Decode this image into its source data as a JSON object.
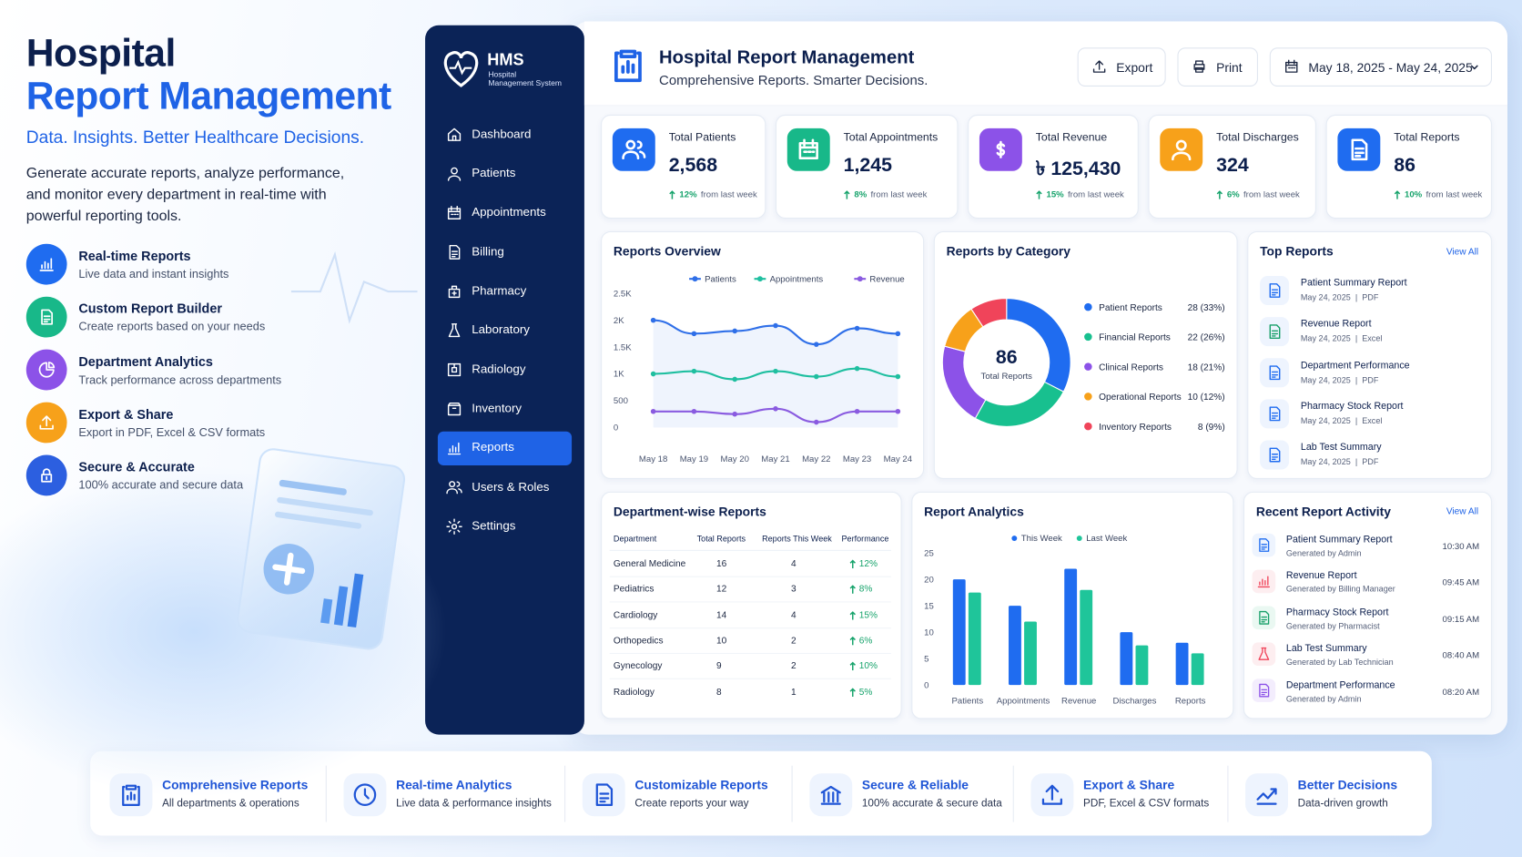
{
  "hero": {
    "title_line1": "Hospital",
    "title_line2": "Report Management",
    "tagline": "Data. Insights. Better Healthcare Decisions.",
    "description": "Generate accurate reports, analyze performance, and monitor every department in real-time with powerful reporting tools.",
    "features": [
      {
        "title": "Real-time Reports",
        "desc": "Live data and instant insights"
      },
      {
        "title": "Custom Report Builder",
        "desc": "Create reports based on your needs"
      },
      {
        "title": "Department Analytics",
        "desc": "Track performance across departments"
      },
      {
        "title": "Export & Share",
        "desc": "Export in PDF, Excel & CSV formats"
      },
      {
        "title": "Secure & Accurate",
        "desc": "100% accurate and secure data"
      }
    ]
  },
  "sidebar": {
    "brand": "HMS",
    "brand_sub": [
      "Hospital",
      "Management System"
    ],
    "nav": [
      {
        "label": "Dashboard"
      },
      {
        "label": "Patients"
      },
      {
        "label": "Appointments"
      },
      {
        "label": "Billing"
      },
      {
        "label": "Pharmacy"
      },
      {
        "label": "Laboratory"
      },
      {
        "label": "Radiology"
      },
      {
        "label": "Inventory"
      },
      {
        "label": "Reports",
        "active": true
      },
      {
        "label": "Users & Roles"
      },
      {
        "label": "Settings"
      }
    ]
  },
  "header": {
    "title": "Hospital Report Management",
    "subtitle": "Comprehensive Reports. Smarter Decisions.",
    "export": "Export",
    "print": "Print",
    "date_range": "May 18, 2025 - May 24, 2025"
  },
  "kpis": [
    {
      "label": "Total Patients",
      "value": "2,568",
      "change": "12%",
      "note": "from last week"
    },
    {
      "label": "Total Appointments",
      "value": "1,245",
      "change": "8%",
      "note": "from last week"
    },
    {
      "label": "Total Revenue",
      "value": "৳ 125,430",
      "change": "15%",
      "note": "from last week"
    },
    {
      "label": "Total Discharges",
      "value": "324",
      "change": "6%",
      "note": "from last week"
    },
    {
      "label": "Total Reports",
      "value": "86",
      "change": "10%",
      "note": "from last week"
    }
  ],
  "chart_data": [
    {
      "type": "line",
      "title": "Reports Overview",
      "categories": [
        "May 18",
        "May 19",
        "May 20",
        "May 21",
        "May 22",
        "May 23",
        "May 24"
      ],
      "series": [
        {
          "name": "Patients",
          "color": "#2f6fe8",
          "values": [
            2000,
            1750,
            1800,
            1900,
            1550,
            1850,
            1750
          ]
        },
        {
          "name": "Appointments",
          "color": "#1fbfa0",
          "values": [
            1000,
            1050,
            900,
            1050,
            950,
            1100,
            950
          ]
        },
        {
          "name": "Revenue",
          "color": "#8a5be0",
          "values": [
            300,
            300,
            250,
            350,
            100,
            300,
            300
          ]
        }
      ],
      "ylim": [
        0,
        2500
      ],
      "yticks": [
        0,
        500,
        {
          "value": 1000,
          "label": "1K"
        },
        {
          "value": 1500,
          "label": "1.5K"
        },
        {
          "value": 2000,
          "label": "2K"
        },
        {
          "value": 2500,
          "label": "2.5K"
        }
      ],
      "grid": false
    },
    {
      "type": "pie",
      "title": "Reports by Category",
      "center_value": 86,
      "center_label": "Total Reports",
      "categories": [
        "Patient Reports",
        "Financial Reports",
        "Clinical Reports",
        "Operational Reports",
        "Inventory Reports"
      ],
      "values": [
        28,
        22,
        18,
        10,
        8
      ],
      "value_labels": [
        "28 (33%)",
        "22 (26%)",
        "18 (21%)",
        "10 (12%)",
        "8 (9%)"
      ],
      "colors": [
        "#1f6cf0",
        "#18c08f",
        "#8c52e8",
        "#f7a11a",
        "#f0445a"
      ]
    },
    {
      "type": "bar",
      "title": "Report Analytics",
      "categories": [
        "Patients",
        "Appointments",
        "Revenue",
        "Discharges",
        "Reports"
      ],
      "series": [
        {
          "name": "This Week",
          "color": "#1f6cf0",
          "values": [
            20,
            15,
            22,
            10,
            8
          ]
        },
        {
          "name": "Last Week",
          "color": "#1fc59a",
          "values": [
            17.5,
            12,
            18,
            7.5,
            6
          ]
        }
      ],
      "ylim": [
        0,
        25
      ],
      "yticks": [
        0,
        5,
        10,
        15,
        20,
        25
      ],
      "grid": false
    }
  ],
  "top_reports": {
    "title": "Top Reports",
    "view_all": "View All",
    "items": [
      {
        "name": "Patient Summary Report",
        "meta": "May 24, 2025  |  PDF"
      },
      {
        "name": "Revenue Report",
        "meta": "May 24, 2025  |  Excel"
      },
      {
        "name": "Department Performance",
        "meta": "May 24, 2025  |  PDF"
      },
      {
        "name": "Pharmacy Stock Report",
        "meta": "May 24, 2025  |  Excel"
      },
      {
        "name": "Lab Test Summary",
        "meta": "May 24, 2025  |  PDF"
      }
    ]
  },
  "dept_table": {
    "title": "Department-wise Reports",
    "columns": [
      "Department",
      "Total Reports",
      "Reports This Week",
      "Performance"
    ],
    "rows": [
      [
        "General Medicine",
        16,
        4,
        "12%"
      ],
      [
        "Pediatrics",
        12,
        3,
        "8%"
      ],
      [
        "Cardiology",
        14,
        4,
        "15%"
      ],
      [
        "Orthopedics",
        10,
        2,
        "6%"
      ],
      [
        "Gynecology",
        9,
        2,
        "10%"
      ],
      [
        "Radiology",
        8,
        1,
        "5%"
      ]
    ]
  },
  "recent_activity": {
    "title": "Recent Report Activity",
    "view_all": "View All",
    "items": [
      {
        "name": "Patient Summary Report",
        "by": "Generated by Admin",
        "time": "10:30 AM"
      },
      {
        "name": "Revenue Report",
        "by": "Generated by Billing Manager",
        "time": "09:45 AM"
      },
      {
        "name": "Pharmacy Stock Report",
        "by": "Generated by Pharmacist",
        "time": "09:15 AM"
      },
      {
        "name": "Lab Test Summary",
        "by": "Generated by Lab Technician",
        "time": "08:40 AM"
      },
      {
        "name": "Department Performance",
        "by": "Generated by Admin",
        "time": "08:20 AM"
      }
    ]
  },
  "highlights": [
    {
      "title": "Comprehensive Reports",
      "desc": "All departments & operations"
    },
    {
      "title": "Real-time Analytics",
      "desc": "Live data & performance insights"
    },
    {
      "title": "Customizable Reports",
      "desc": "Create reports your way"
    },
    {
      "title": "Secure & Reliable",
      "desc": "100% accurate & secure data"
    },
    {
      "title": "Export & Share",
      "desc": "PDF, Excel & CSV formats"
    },
    {
      "title": "Better Decisions",
      "desc": "Data-driven growth"
    }
  ]
}
